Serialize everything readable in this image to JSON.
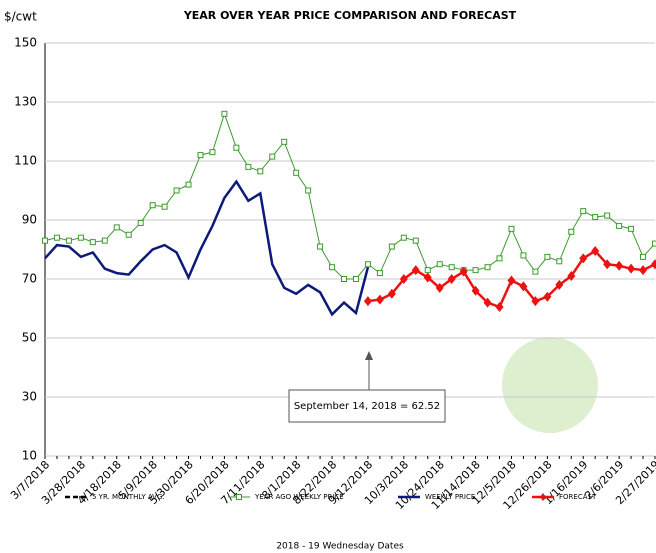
{
  "chart_data": {
    "type": "line",
    "title": "YEAR OVER YEAR PRICE COMPARISON AND FORECAST",
    "y_label": "$/cwt",
    "x_label": "2018 - 19 Wednesday Dates",
    "annotation": "September 14, 2018  = 62.52",
    "categories": [
      "3/7/2018",
      null,
      null,
      "3/28/2018",
      null,
      null,
      "4/18/2018",
      null,
      null,
      "5/9/2018",
      null,
      null,
      "5/30/2018",
      null,
      null,
      "6/20/2018",
      null,
      null,
      "7/11/2018",
      null,
      null,
      "8/1/2018",
      null,
      null,
      "8/22/2018",
      null,
      null,
      "9/12/2018",
      null,
      null,
      "10/3/2018",
      null,
      null,
      "10/24/2018",
      null,
      null,
      "11/14/2018",
      null,
      null,
      "12/5/2018",
      null,
      null,
      "12/26/2018",
      null,
      null,
      "1/16/2019",
      null,
      null,
      "2/6/2019",
      null,
      null,
      "2/27/2019"
    ],
    "ylim": [
      10,
      150
    ],
    "yticks": [
      10,
      30,
      50,
      70,
      90,
      110,
      130,
      150
    ],
    "grid": true,
    "series": [
      {
        "name": "5 YR. MONTHLY AVG.",
        "color": "#000000",
        "dash": true,
        "marker": null,
        "values": [
          null,
          null,
          null,
          null,
          null,
          null,
          null,
          null,
          null,
          null,
          null,
          null,
          null,
          null,
          null,
          null,
          null,
          null,
          null,
          null,
          null,
          null,
          null,
          null,
          null,
          null,
          null,
          null,
          null,
          null,
          null,
          null,
          null,
          null,
          null,
          null,
          null,
          null,
          null,
          null,
          null,
          null,
          null,
          null,
          null,
          null,
          null,
          null,
          null,
          null,
          null,
          null
        ]
      },
      {
        "name": "YEAR AGO WEEKLY PRICE",
        "color": "#3c9a2c",
        "dash": false,
        "marker": "square",
        "values": [
          83,
          84,
          83,
          84,
          82.5,
          83,
          87.5,
          85,
          89,
          95,
          94.5,
          100,
          102,
          112,
          113,
          126,
          114.5,
          108,
          106.5,
          111.5,
          116.5,
          106,
          100,
          81,
          74,
          70,
          70,
          75,
          72,
          81,
          84,
          83,
          73,
          75,
          74,
          73,
          73,
          74,
          77,
          87,
          78,
          72.5,
          77.5,
          76,
          86,
          93,
          91,
          91.5,
          88,
          87,
          77.5,
          82
        ]
      },
      {
        "name": "WEEKLY PRICE",
        "color": "#0d1a7a",
        "dash": false,
        "marker": null,
        "values": [
          77,
          81.5,
          81,
          77.5,
          79,
          73.5,
          72,
          71.5,
          76,
          80,
          81.5,
          79,
          70.5,
          80,
          88,
          97.5,
          103,
          96.5,
          99,
          75,
          67,
          65,
          68,
          65.5,
          58,
          62,
          58.5,
          74,
          null,
          null,
          null,
          null,
          null,
          null,
          null,
          null,
          null,
          null,
          null,
          null,
          null,
          null,
          null,
          null,
          null,
          null,
          null,
          null,
          null,
          null,
          null,
          null
        ]
      },
      {
        "name": "FORECAST",
        "color": "#ee1111",
        "dash": false,
        "marker": "diamond",
        "values": [
          null,
          null,
          null,
          null,
          null,
          null,
          null,
          null,
          null,
          null,
          null,
          null,
          null,
          null,
          null,
          null,
          null,
          null,
          null,
          null,
          null,
          null,
          null,
          null,
          null,
          null,
          null,
          62.52,
          63,
          65,
          70,
          73,
          70.5,
          67,
          70,
          72.5,
          66,
          62,
          60.5,
          69.5,
          67.5,
          62.5,
          64,
          68,
          71,
          77,
          79.5,
          75,
          74.5,
          73.5,
          73,
          75
        ]
      }
    ]
  }
}
